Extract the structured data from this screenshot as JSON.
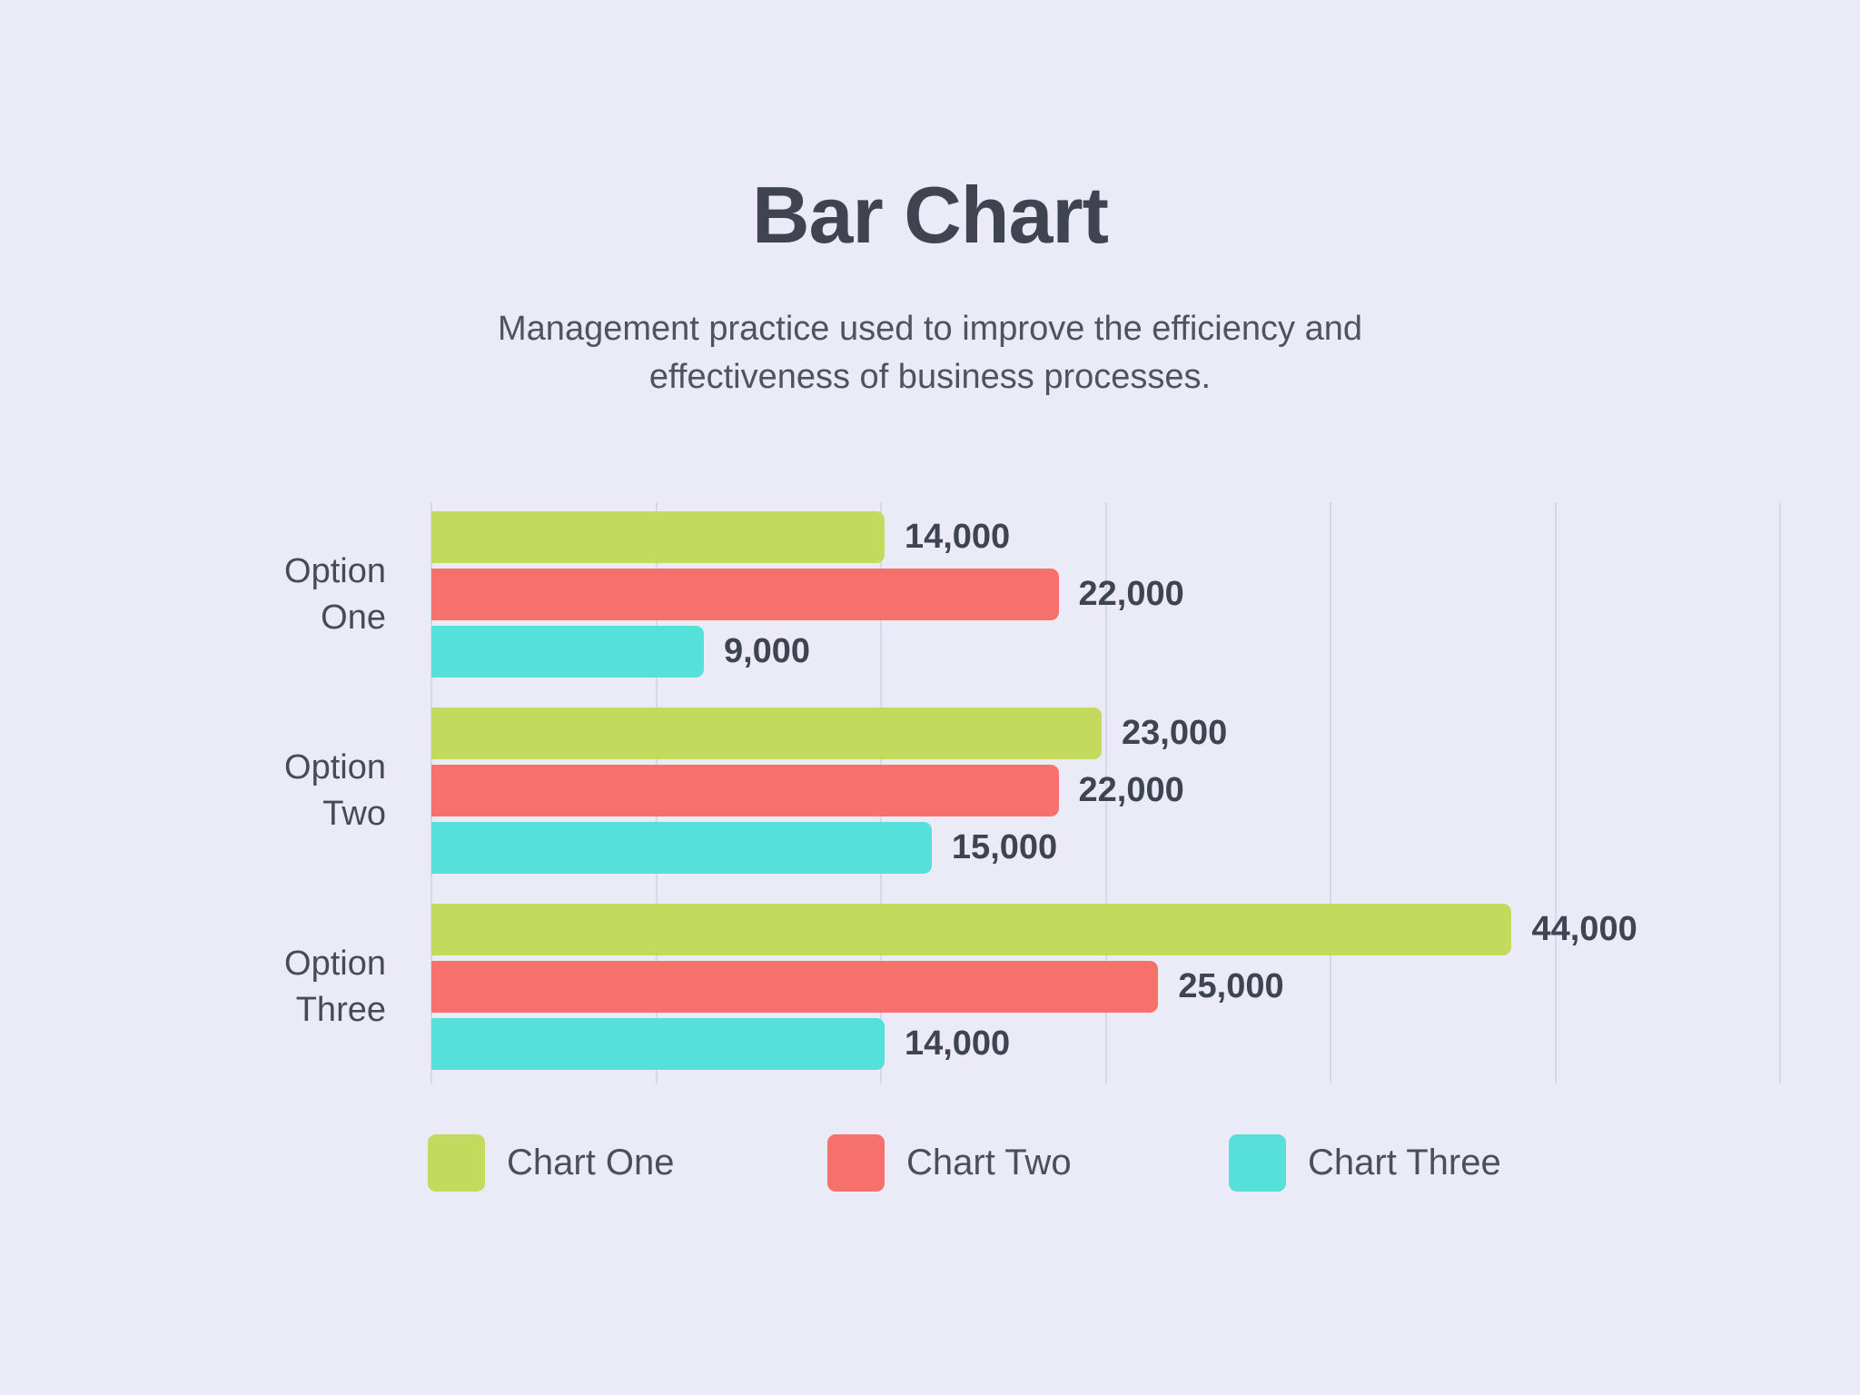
{
  "header": {
    "title": "Bar Chart",
    "subtitle_line1": "Management practice used to improve the efficiency and",
    "subtitle_line2": "effectiveness of business processes."
  },
  "colors": {
    "background": "#ebebf8",
    "gridline": "#d6d8e7",
    "title_text": "#3f4450",
    "subtitle_text": "#4e545e",
    "category_text": "#464c56",
    "value_text": "#3f4550"
  },
  "chart_data": {
    "type": "bar",
    "orientation": "horizontal",
    "title": "Bar Chart",
    "subtitle": "Management practice used to improve the efficiency and effectiveness of business processes.",
    "categories": [
      "Option One",
      "Option Two",
      "Option Three"
    ],
    "category_label_lines": [
      [
        "Option",
        "One"
      ],
      [
        "Option",
        "Two"
      ],
      [
        "Option",
        "Three"
      ]
    ],
    "series": [
      {
        "name": "Chart One",
        "color": "#c4da5f",
        "values": [
          14000,
          23000,
          44000
        ]
      },
      {
        "name": "Chart Two",
        "color": "#f7716c",
        "values": [
          22000,
          22000,
          25000
        ]
      },
      {
        "name": "Chart Three",
        "color": "#55e0da",
        "values": [
          9000,
          15000,
          14000
        ]
      }
    ],
    "value_labels_by_category": [
      [
        "14,000",
        "22,000",
        "9,000"
      ],
      [
        "23,000",
        "22,000",
        "15,000"
      ],
      [
        "44,000",
        "25,000",
        "14,000"
      ]
    ],
    "bar_length_pct_by_category": [
      [
        33.6,
        46.5,
        20.2
      ],
      [
        49.7,
        46.5,
        37.1
      ],
      [
        80.1,
        53.9,
        33.6
      ]
    ],
    "grid": {
      "show": true,
      "vertical_line_count": 7
    },
    "legend_position": "bottom",
    "legend": [
      "Chart One",
      "Chart Two",
      "Chart Three"
    ]
  }
}
